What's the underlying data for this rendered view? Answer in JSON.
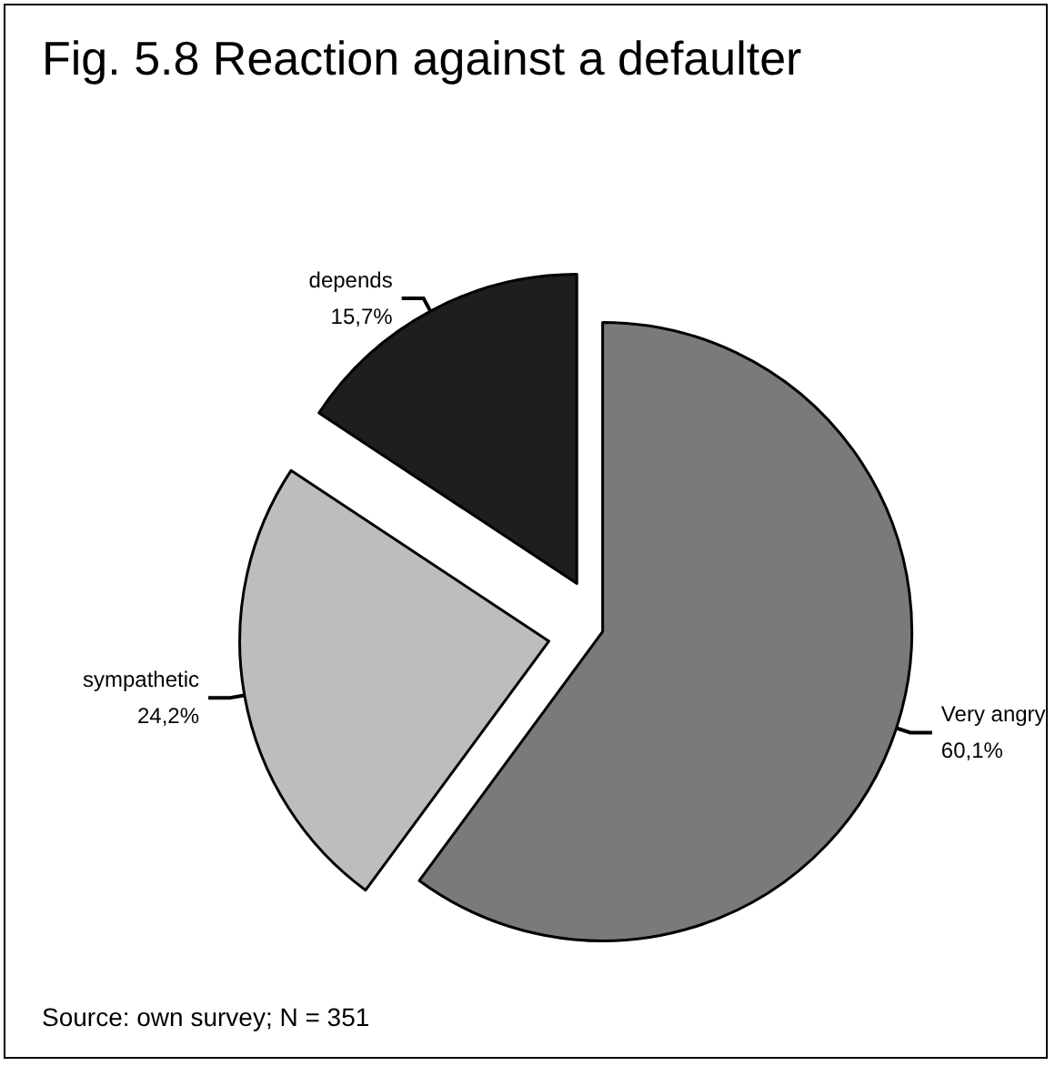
{
  "chart_data": {
    "type": "pie",
    "title": "Fig. 5.8 Reaction against a defaulter",
    "categories": [
      "Very angry",
      "sympathetic",
      "depends"
    ],
    "values": [
      60.1,
      24.2,
      15.7
    ],
    "value_labels": [
      "60,1%",
      "24,2%",
      "15,7%"
    ],
    "colors": [
      "#7a7a7a",
      "#bdbdbd",
      "#1e1e1e"
    ],
    "legend": false,
    "annotations": [
      "Source: own survey; N = 351"
    ]
  }
}
